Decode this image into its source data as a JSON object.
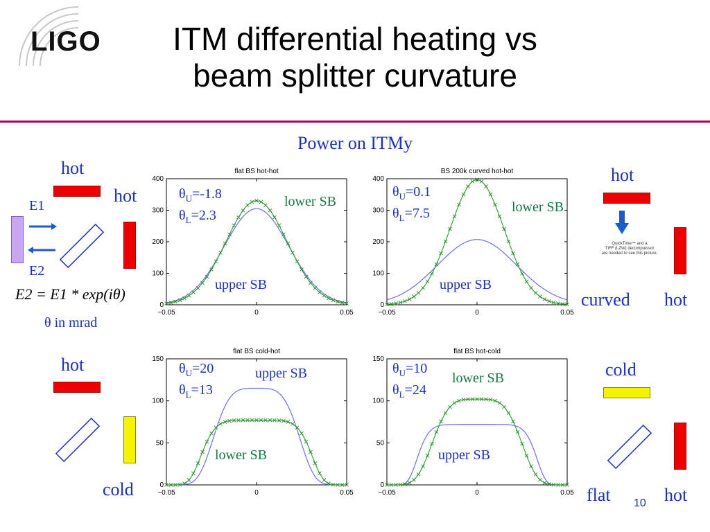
{
  "header": {
    "logo": "LIGO",
    "title_line1": "ITM differential heating vs",
    "title_line2": "beam splitter curvature",
    "subtitle": "Power on ITMy"
  },
  "left": {
    "hot_top": "hot",
    "hot_side": "hot",
    "e1": "E1",
    "e2": "E2",
    "equation": "E2 = E1 * exp(iθ)",
    "theta_note": "θ in mrad",
    "hot_bottom": "hot",
    "cold_bottom": "cold"
  },
  "right": {
    "hot_top": "hot",
    "quicktime_line1": "QuickTime™ and a",
    "quicktime_line2": "TIFF (LZW) decompressor",
    "quicktime_line3": "are needed to see this picture.",
    "curved": "curved",
    "hot_mid": "hot",
    "cold": "cold",
    "flat": "flat",
    "hot_bottom": "hot"
  },
  "page_number": "10",
  "colors": {
    "rule": "#b0005a",
    "text_blue": "#1a2fd0",
    "green": "#117a40",
    "curve_blue": "#6670ff",
    "curve_green": "#3aa63a"
  },
  "chart_data": [
    {
      "type": "line",
      "title": "flat BS  hot-hot",
      "xlim": [
        -0.05,
        0.05
      ],
      "ylim": [
        0,
        400
      ],
      "xticks": [
        "-0.05",
        "0",
        "0.05"
      ],
      "yticks": [
        "0",
        "100",
        "200",
        "300",
        "400"
      ],
      "theta_u": "θU=-1.8",
      "theta_l": "θL=2.3",
      "upper_label": "upper SB",
      "lower_label": "lower SB",
      "series": [
        {
          "name": "upper SB",
          "shape": "gauss",
          "peak": 305,
          "sigma": 0.018
        },
        {
          "name": "lower SB",
          "shape": "gauss",
          "peak": 330,
          "sigma": 0.017
        }
      ]
    },
    {
      "type": "line",
      "title": "BS 200k curved  hot-hot",
      "xlim": [
        -0.05,
        0.05
      ],
      "ylim": [
        0,
        400
      ],
      "xticks": [
        "-0.05",
        "0",
        "0.05"
      ],
      "yticks": [
        "0",
        "100",
        "200",
        "300",
        "400"
      ],
      "theta_u": "θU=0.1",
      "theta_l": "θL=7.5",
      "upper_label": "upper SB",
      "lower_label": "lower SB",
      "series": [
        {
          "name": "upper SB",
          "shape": "gauss",
          "peak": 207,
          "sigma": 0.022
        },
        {
          "name": "lower SB",
          "shape": "gauss",
          "peak": 397,
          "sigma": 0.015
        }
      ]
    },
    {
      "type": "line",
      "title": "flat BS  cold-hot",
      "xlim": [
        -0.05,
        0.05
      ],
      "ylim": [
        0,
        150
      ],
      "xticks": [
        "-0.05",
        "0",
        "0.05"
      ],
      "yticks": [
        "0",
        "50",
        "100",
        "150"
      ],
      "theta_u": "θU=20",
      "theta_l": "θL=13",
      "upper_label": "upper SB",
      "lower_label": "lower SB",
      "series": [
        {
          "name": "upper SB",
          "shape": "flattop",
          "peak": 115,
          "sigma": 0.026,
          "power": 4
        },
        {
          "name": "lower SB",
          "shape": "flattop",
          "peak": 77,
          "sigma": 0.032,
          "power": 6
        }
      ]
    },
    {
      "type": "line",
      "title": "flat BS  hot-cold",
      "xlim": [
        -0.05,
        0.05
      ],
      "ylim": [
        0,
        150
      ],
      "xticks": [
        "-0.05",
        "0",
        "0.05"
      ],
      "yticks": [
        "0",
        "50",
        "100",
        "150"
      ],
      "theta_u": "θU=10",
      "theta_l": "θL=24",
      "upper_label": "upper SB",
      "lower_label": "lower SB",
      "series": [
        {
          "name": "upper SB",
          "shape": "flattop",
          "peak": 72,
          "sigma": 0.034,
          "power": 8
        },
        {
          "name": "lower SB",
          "shape": "flattop",
          "peak": 102,
          "sigma": 0.027,
          "power": 4
        }
      ]
    }
  ]
}
